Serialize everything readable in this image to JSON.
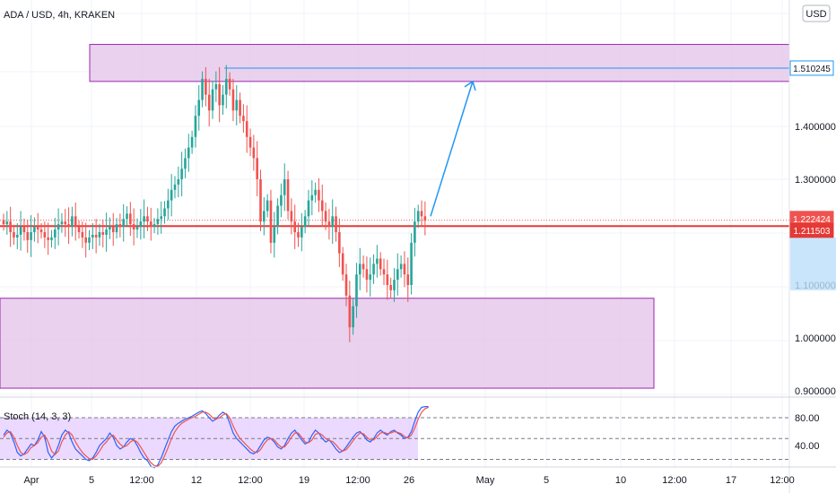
{
  "header": {
    "title": "ADA / USD, 4h, KRAKEN",
    "currency": "USD"
  },
  "colors": {
    "up": "#26a69a",
    "down": "#ef5350",
    "zone_stroke": "#9c27b0",
    "zone_fill": "#e1bee7",
    "line_red": "#e53935",
    "arrow": "#2196f3",
    "k_line": "#2962ff",
    "d_line": "#ef5350",
    "stoch_band": "#e9d5ff"
  },
  "chart_data": [
    {
      "type": "candlestick",
      "title": "ADA / USD, 4h, KRAKEN",
      "ylim": [
        0.9,
        1.6
      ],
      "y_ticks": [
        "1.400000",
        "1.300000",
        "1.100000",
        "1.000000",
        "0.900000"
      ],
      "x_ticks": [
        "Apr",
        "5",
        "12:00",
        "12",
        "12:00",
        "19",
        "12:00",
        "26",
        "May",
        "5",
        "10",
        "12:00",
        "17",
        "12:00"
      ],
      "price_labels": [
        {
          "value": 1.510245,
          "text": "1.510245",
          "style": "zone"
        },
        {
          "value": 1.222424,
          "text": "1.222424",
          "style": "last"
        },
        {
          "value": 1.211503,
          "text": "1.211503",
          "style": "level"
        }
      ],
      "horizontal_levels": [
        {
          "value": 1.211503,
          "style": "solid"
        },
        {
          "value": 1.222424,
          "style": "dotted"
        },
        {
          "value": 1.510245,
          "style": "thin"
        }
      ],
      "zones": [
        {
          "from": 1.485,
          "to": 1.555
        },
        {
          "from": 0.905,
          "to": 1.075
        }
      ],
      "arrow": {
        "from": 1.23,
        "to": 1.485
      },
      "candles_close": [
        1.215,
        1.22,
        1.2,
        1.19,
        1.195,
        1.21,
        1.2,
        1.185,
        1.2,
        1.21,
        1.205,
        1.2,
        1.19,
        1.185,
        1.19,
        1.205,
        1.215,
        1.22,
        1.215,
        1.21,
        1.23,
        1.21,
        1.2,
        1.19,
        1.18,
        1.19,
        1.195,
        1.19,
        1.2,
        1.195,
        1.205,
        1.21,
        1.2,
        1.215,
        1.21,
        1.225,
        1.235,
        1.215,
        1.205,
        1.21,
        1.22,
        1.23,
        1.22,
        1.21,
        1.215,
        1.225,
        1.23,
        1.245,
        1.26,
        1.28,
        1.29,
        1.3,
        1.32,
        1.34,
        1.36,
        1.38,
        1.42,
        1.45,
        1.49,
        1.46,
        1.43,
        1.47,
        1.48,
        1.44,
        1.46,
        1.49,
        1.47,
        1.43,
        1.45,
        1.42,
        1.41,
        1.38,
        1.36,
        1.34,
        1.3,
        1.22,
        1.24,
        1.26,
        1.18,
        1.21,
        1.25,
        1.27,
        1.3,
        1.24,
        1.22,
        1.2,
        1.19,
        1.21,
        1.23,
        1.26,
        1.27,
        1.28,
        1.26,
        1.24,
        1.22,
        1.21,
        1.23,
        1.2,
        1.16,
        1.12,
        1.08,
        1.02,
        1.06,
        1.12,
        1.14,
        1.13,
        1.11,
        1.12,
        1.14,
        1.15,
        1.13,
        1.12,
        1.1,
        1.09,
        1.11,
        1.13,
        1.14,
        1.12,
        1.1,
        1.18,
        1.22,
        1.24,
        1.23,
        1.222
      ]
    },
    {
      "type": "line",
      "title": "Stoch (14, 3, 3)",
      "ylim": [
        0,
        100
      ],
      "y_ticks": [
        "80.00",
        "40.00"
      ],
      "band": [
        20,
        80
      ],
      "series": [
        {
          "values": [
            55,
            62,
            58,
            45,
            30,
            25,
            28,
            35,
            42,
            40,
            48,
            60,
            52,
            30,
            22,
            28,
            40,
            55,
            62,
            58,
            45,
            35,
            30,
            25,
            20,
            18,
            22,
            30,
            40,
            45,
            50,
            58,
            52,
            40,
            35,
            38,
            45,
            50,
            48,
            40,
            30,
            22,
            18,
            10,
            8,
            12,
            22,
            35,
            48,
            60,
            68,
            72,
            75,
            78,
            80,
            82,
            85,
            88,
            90,
            86,
            80,
            75,
            78,
            84,
            88,
            85,
            72,
            58,
            50,
            45,
            40,
            35,
            30,
            28,
            32,
            40,
            48,
            52,
            50,
            45,
            38,
            35,
            40,
            50,
            58,
            62,
            55,
            48,
            42,
            45,
            55,
            62,
            58,
            50,
            45,
            48,
            42,
            35,
            30,
            32,
            38,
            45,
            52,
            58,
            60,
            55,
            48,
            45,
            50,
            58,
            62,
            58,
            55,
            60,
            62,
            58,
            55,
            50,
            52,
            60,
            75,
            88,
            95,
            96,
            96
          ]
        },
        {
          "values": [
            52,
            58,
            60,
            52,
            40,
            30,
            27,
            30,
            37,
            40,
            44,
            52,
            55,
            45,
            32,
            27,
            32,
            45,
            55,
            60,
            55,
            45,
            37,
            30,
            25,
            21,
            20,
            25,
            32,
            40,
            45,
            52,
            55,
            48,
            42,
            38,
            40,
            45,
            48,
            45,
            38,
            30,
            22,
            15,
            11,
            10,
            15,
            25,
            37,
            50,
            60,
            67,
            72,
            75,
            78,
            80,
            82,
            85,
            88,
            88,
            85,
            80,
            78,
            80,
            84,
            86,
            80,
            68,
            58,
            50,
            45,
            40,
            35,
            31,
            30,
            34,
            42,
            48,
            50,
            48,
            42,
            38,
            38,
            44,
            52,
            58,
            58,
            52,
            45,
            44,
            48,
            56,
            58,
            55,
            50,
            47,
            46,
            41,
            35,
            32,
            34,
            40,
            47,
            53,
            58,
            57,
            52,
            48,
            48,
            53,
            58,
            59,
            57,
            58,
            60,
            59,
            57,
            53,
            51,
            55,
            65,
            78,
            88,
            93,
            95
          ]
        }
      ]
    }
  ]
}
